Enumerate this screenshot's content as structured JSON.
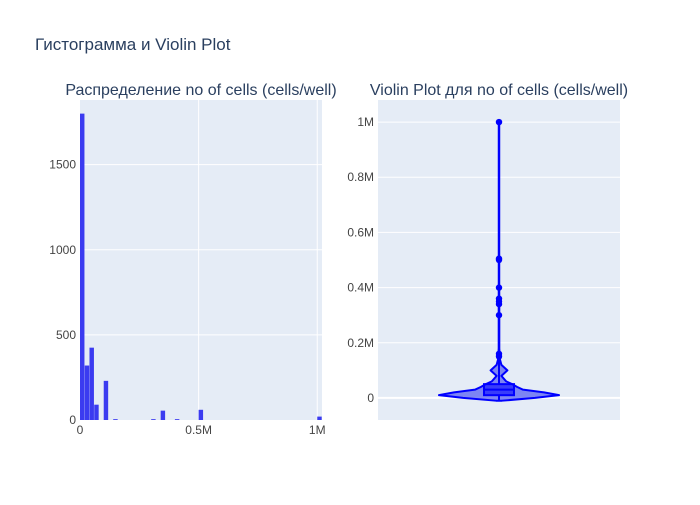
{
  "figure_title": "Гистограмма и Violin Plot",
  "colors": {
    "plot_bg": "#e5ecf6",
    "bar": "#3b3bf0",
    "violin_fill": "#6b73f2",
    "violin_line": "#0000ff",
    "text": "#444444",
    "title": "#2a3f5f"
  },
  "chart_data": [
    {
      "type": "bar",
      "title": "Распределение no of cells (cells/well)",
      "xlabel": "",
      "ylabel": "",
      "xlim": [
        0,
        1020000
      ],
      "ylim": [
        0,
        1880
      ],
      "x_ticks": [
        {
          "value": 0,
          "label": "0"
        },
        {
          "value": 500000,
          "label": "0.5M"
        },
        {
          "value": 1000000,
          "label": "1M"
        }
      ],
      "y_ticks": [
        {
          "value": 0,
          "label": "0"
        },
        {
          "value": 500,
          "label": "500"
        },
        {
          "value": 1000,
          "label": "1000"
        },
        {
          "value": 1500,
          "label": "1500"
        }
      ],
      "grid": true,
      "bin_width": 20000,
      "bins": [
        {
          "start": 0,
          "count": 1800
        },
        {
          "start": 20000,
          "count": 320
        },
        {
          "start": 40000,
          "count": 425
        },
        {
          "start": 60000,
          "count": 90
        },
        {
          "start": 100000,
          "count": 230
        },
        {
          "start": 140000,
          "count": 5
        },
        {
          "start": 300000,
          "count": 5
        },
        {
          "start": 340000,
          "count": 55
        },
        {
          "start": 400000,
          "count": 5
        },
        {
          "start": 500000,
          "count": 60
        },
        {
          "start": 1000000,
          "count": 20
        }
      ]
    },
    {
      "type": "violin",
      "title": "Violin Plot для no of cells (cells/well)",
      "xlabel": "",
      "ylabel": "",
      "ylim": [
        -80000,
        1080000
      ],
      "y_ticks": [
        {
          "value": 0,
          "label": "0"
        },
        {
          "value": 200000,
          "label": "0.2M"
        },
        {
          "value": 400000,
          "label": "0.4M"
        },
        {
          "value": 600000,
          "label": "0.6M"
        },
        {
          "value": 800000,
          "label": "0.8M"
        },
        {
          "value": 1000000,
          "label": "1M"
        }
      ],
      "grid": true,
      "box": {
        "q1": 10000,
        "median": 30000,
        "q3": 50000,
        "min": -10000,
        "max": 1000000
      },
      "outliers": [
        150000,
        160000,
        300000,
        340000,
        350000,
        360000,
        400000,
        500000,
        505000,
        1000000
      ],
      "density": [
        {
          "y": -10000,
          "w": 0.05
        },
        {
          "y": 0,
          "w": 0.6
        },
        {
          "y": 10000,
          "w": 1.0
        },
        {
          "y": 20000,
          "w": 0.75
        },
        {
          "y": 30000,
          "w": 0.4
        },
        {
          "y": 40000,
          "w": 0.3
        },
        {
          "y": 50000,
          "w": 0.22
        },
        {
          "y": 60000,
          "w": 0.12
        },
        {
          "y": 80000,
          "w": 0.04
        },
        {
          "y": 100000,
          "w": 0.14
        },
        {
          "y": 120000,
          "w": 0.04
        },
        {
          "y": 140000,
          "w": 0.015
        },
        {
          "y": 180000,
          "w": 0.005
        },
        {
          "y": 340000,
          "w": 0.005
        },
        {
          "y": 420000,
          "w": 0.004
        },
        {
          "y": 520000,
          "w": 0.004
        },
        {
          "y": 1000000,
          "w": 0.004
        }
      ]
    }
  ]
}
